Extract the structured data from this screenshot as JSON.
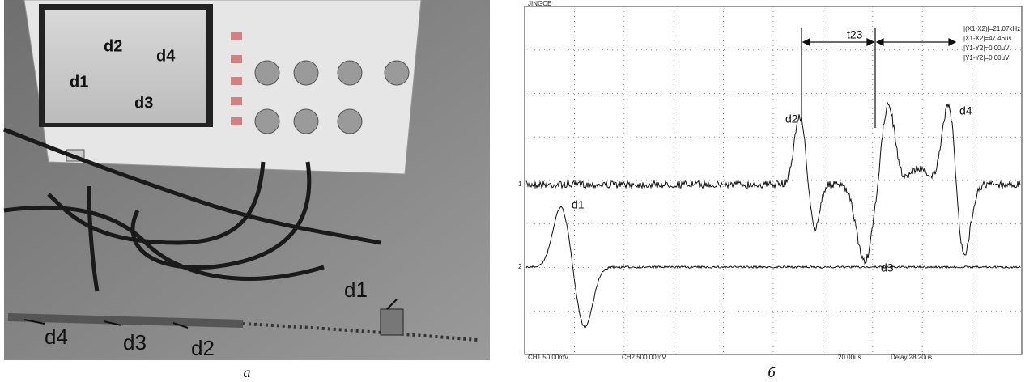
{
  "panel_a": {
    "caption": "а",
    "screen_labels": [
      "d2",
      "d4",
      "d1",
      "d3"
    ],
    "probe_labels": [
      "d1",
      "d4",
      "d3",
      "d2"
    ]
  },
  "panel_b": {
    "caption": "б",
    "brand": "JINGCE",
    "readouts": [
      "|(X1-X2)|=21.07kHz",
      "|X1-X2|=47.46us",
      "|Y1-Y2|=0.00uV",
      "|Y1-Y2|=0.00uV"
    ],
    "markers": [
      "d1",
      "d2",
      "d3",
      "d4"
    ],
    "interval": "t23",
    "footer": [
      "CH1 50.00mV",
      "CH2 500.00mV",
      "20.00us",
      "Delay:28.20us"
    ]
  }
}
